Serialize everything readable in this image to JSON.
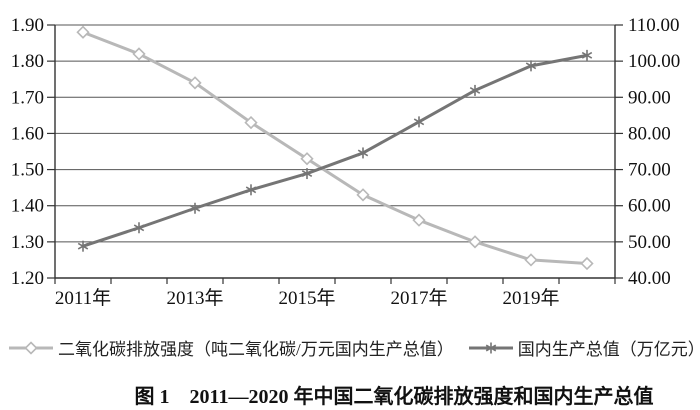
{
  "chart_data": {
    "type": "line",
    "caption": "图 1　2011—2020 年中国二氧化碳排放强度和国内生产总值",
    "categories": [
      "2011",
      "2012",
      "2013",
      "2014",
      "2015",
      "2016",
      "2017",
      "2018",
      "2019",
      "2020"
    ],
    "x_tick_labels": [
      "2011年",
      "2013年",
      "2015年",
      "2017年",
      "2019年"
    ],
    "series": [
      {
        "name": "二氧化碳排放强度（吨二氧化碳/万元国内生产总值）",
        "axis": "left",
        "marker": "diamond",
        "color": "#b8b8b8",
        "values": [
          1.88,
          1.82,
          1.74,
          1.63,
          1.53,
          1.43,
          1.36,
          1.3,
          1.25,
          1.24
        ]
      },
      {
        "name": "国内生产总值（万亿元）",
        "axis": "right",
        "marker": "asterisk",
        "color": "#757575",
        "values": [
          48.8,
          53.9,
          59.3,
          64.4,
          68.9,
          74.6,
          83.2,
          91.9,
          98.7,
          101.6
        ]
      }
    ],
    "left_axis": {
      "min": 1.2,
      "max": 1.9,
      "step": 0.1,
      "tick_labels": [
        "1.20",
        "1.30",
        "1.40",
        "1.50",
        "1.60",
        "1.70",
        "1.80",
        "1.90"
      ]
    },
    "right_axis": {
      "min": 40,
      "max": 110,
      "step": 10,
      "tick_labels": [
        "40.00",
        "50.00",
        "60.00",
        "70.00",
        "80.00",
        "90.00",
        "100.00",
        "110.00"
      ]
    },
    "grid": true,
    "legend_position": "bottom",
    "colors": {
      "gridline": "#555555",
      "axis": "#333333",
      "text": "#111111"
    }
  }
}
